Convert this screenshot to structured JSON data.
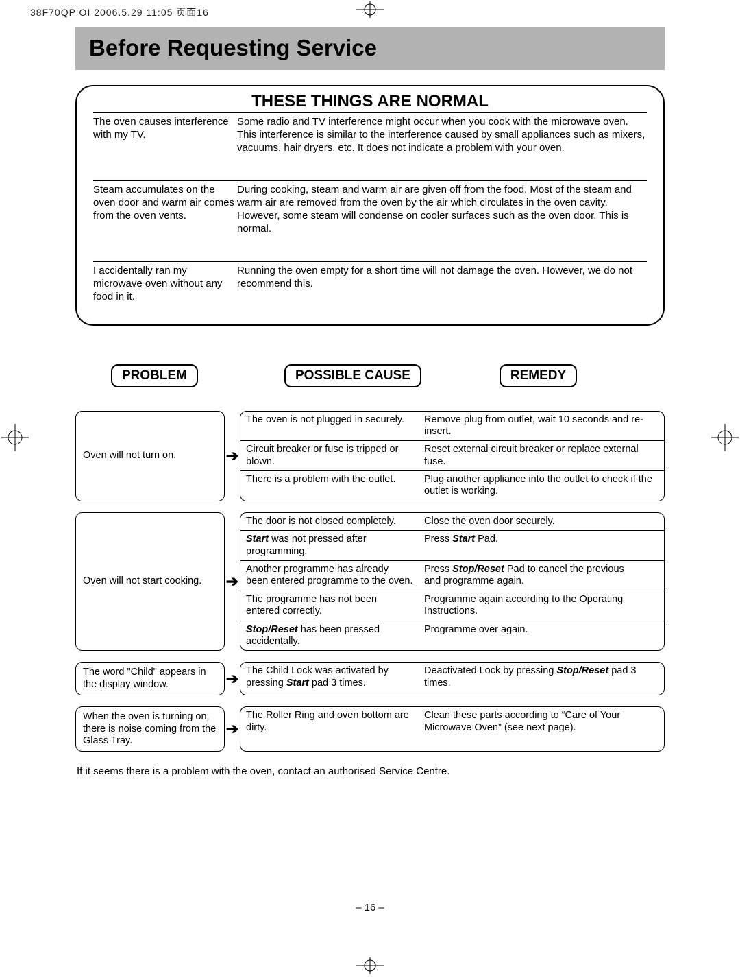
{
  "print_meta": "38F70QP OI  2006.5.29 11:05  页面16",
  "title": "Before Requesting Service",
  "normal_section": {
    "heading": "THESE THINGS ARE NORMAL",
    "rows": [
      {
        "issue": "The oven causes interference with my TV.",
        "explain": "Some radio and TV interference might occur when you cook with the microwave oven. This interference is similar to the interference caused by small appliances such as mixers, vacuums, hair dryers, etc. It does not indicate a problem with your oven."
      },
      {
        "issue": "Steam accumulates on the oven door and warm air comes from the oven vents.",
        "explain": "During cooking, steam and warm air are given off from the food. Most of the steam and warm air are removed from the oven by the air which circulates in the oven cavity. However, some steam will condense on cooler surfaces such as the oven door. This is normal."
      },
      {
        "issue": "I accidentally ran my microwave oven without any food in it.",
        "explain": "Running the oven empty for a short time will not damage the oven. However, we do not recommend this."
      }
    ]
  },
  "headers": {
    "problem": "PROBLEM",
    "cause": "POSSIBLE CAUSE",
    "remedy": "REMEDY"
  },
  "blocks": [
    {
      "problem": "Oven will not turn on.",
      "rows": [
        {
          "cause": "The oven is not plugged in securely.",
          "remedy": "Remove plug from outlet, wait 10 seconds and re-insert."
        },
        {
          "cause": "Circuit breaker or fuse is tripped or blown.",
          "remedy": "Reset external circuit breaker or replace external fuse."
        },
        {
          "cause": "There is a problem with the outlet.",
          "remedy": "Plug another appliance into the outlet to check if the outlet is working."
        }
      ]
    },
    {
      "problem": "Oven will not start cooking.",
      "rows": [
        {
          "cause": "The door is not closed completely.",
          "remedy": "Close the oven door securely."
        },
        {
          "cause_html": "<b><i>Start</i></b> was not pressed after programming.",
          "remedy_html": "Press <b><i>Start</i></b>  Pad."
        },
        {
          "cause": "Another programme has already been entered programme to the oven.",
          "remedy_html": "Press <b><i>Stop/Reset</i></b> Pad to cancel the previous<br>and programme again."
        },
        {
          "cause": "The programme has not been entered correctly.",
          "remedy": "Programme again according to the Operating Instructions."
        },
        {
          "cause_html": "<b><i>Stop/Reset</i></b> has been pressed accidentally.",
          "remedy": "Programme over again."
        }
      ]
    },
    {
      "problem": "The word \"Child\" appears in the display window.",
      "rows": [
        {
          "cause_html": "The Child Lock was activated by pressing <b><i>Start</i></b> pad 3 times.",
          "remedy_html": "Deactivated Lock by pressing <b><i>Stop/Reset</i></b> pad 3 times."
        }
      ]
    },
    {
      "problem": "When the oven is turning on, there is noise coming from the Glass Tray.",
      "rows": [
        {
          "cause": "The Roller Ring and oven bottom are dirty.",
          "remedy": "Clean these parts according to “Care of Your Microwave Oven” (see next page)."
        }
      ]
    }
  ],
  "footnote": "If it seems there is a problem with the oven, contact an authorised Service Centre.",
  "page_number": "– 16 –"
}
